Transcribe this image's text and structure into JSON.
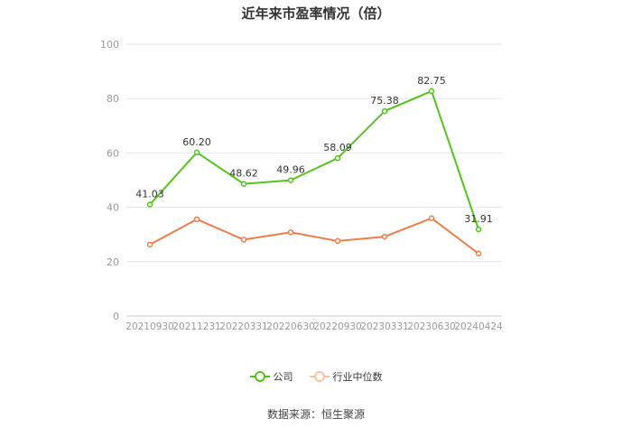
{
  "chart_data": {
    "type": "line",
    "title": "近年来市盈率情况（倍）",
    "categories": [
      "20210930",
      "20211231",
      "20220331",
      "20220630",
      "20220930",
      "20230331",
      "20230630",
      "20240424"
    ],
    "series": [
      {
        "name": "公司",
        "color": "#52c41a",
        "values": [
          41.03,
          60.2,
          48.62,
          49.96,
          58.09,
          75.38,
          82.75,
          31.91
        ],
        "labels": [
          "41.03",
          "60.20",
          "48.62",
          "49.96",
          "58.09",
          "75.38",
          "82.75",
          "31.91"
        ]
      },
      {
        "name": "行业中位数",
        "color": "#f07c4a",
        "values": [
          26.3,
          35.6,
          28.1,
          30.8,
          27.6,
          29.2,
          36.0,
          23.0
        ]
      }
    ],
    "yticks": [
      "0",
      "20",
      "40",
      "60",
      "80",
      "100"
    ],
    "ylim": [
      0,
      100
    ],
    "grid": true,
    "legend_position": "bottom"
  },
  "source": "数据来源：恒生聚源"
}
